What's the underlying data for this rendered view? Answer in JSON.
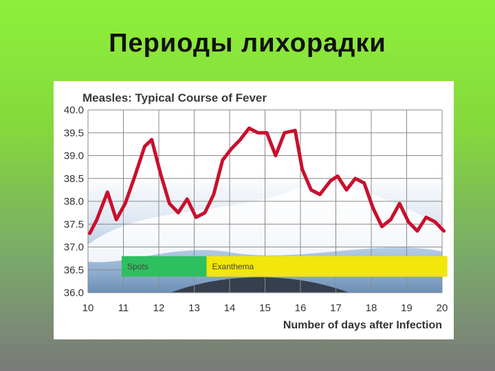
{
  "slide": {
    "title": "Периоды лихорадки"
  },
  "chart_data": {
    "type": "line",
    "title": "Measles: Typical Course of Fever",
    "xlabel": "Number of days after Infection",
    "ylabel": "",
    "xlim": [
      10,
      20
    ],
    "ylim": [
      36.0,
      40.0
    ],
    "x_ticks": [
      "10",
      "11",
      "12",
      "13",
      "14",
      "15",
      "16",
      "17",
      "18",
      "19",
      "20"
    ],
    "y_ticks": [
      "40.0",
      "39.5",
      "39.0",
      "38.5",
      "38.0",
      "37.5",
      "37.0",
      "36.5",
      "36.0"
    ],
    "grid": true,
    "series": [
      {
        "color": "#c8102e",
        "x": [
          10.05,
          10.25,
          10.55,
          10.8,
          11.05,
          11.3,
          11.6,
          11.8,
          12.05,
          12.3,
          12.55,
          12.8,
          13.05,
          13.3,
          13.55,
          13.8,
          14.05,
          14.3,
          14.55,
          14.8,
          15.05,
          15.3,
          15.55,
          15.85,
          16.05,
          16.3,
          16.55,
          16.85,
          17.05,
          17.3,
          17.55,
          17.8,
          18.05,
          18.3,
          18.55,
          18.8,
          19.05,
          19.3,
          19.55,
          19.8,
          20.05
        ],
        "values": [
          37.3,
          37.6,
          38.2,
          37.6,
          37.95,
          38.5,
          39.2,
          39.35,
          38.6,
          37.95,
          37.75,
          38.05,
          37.65,
          37.75,
          38.15,
          38.9,
          39.15,
          39.35,
          39.6,
          39.5,
          39.5,
          39.0,
          39.5,
          39.55,
          38.7,
          38.25,
          38.15,
          38.45,
          38.55,
          38.25,
          38.5,
          38.4,
          37.85,
          37.45,
          37.6,
          37.95,
          37.55,
          37.35,
          37.65,
          37.55,
          37.35
        ]
      }
    ],
    "bands": [
      {
        "label": "Spots",
        "color": "#2ebf5e",
        "x_start": 10.95,
        "x_end": 13.35,
        "y_top": 36.8,
        "y_bottom": 36.35
      },
      {
        "label": "Exanthema",
        "color": "#f2e60a",
        "x_start": 13.35,
        "x_end": 20.15,
        "y_top": 36.8,
        "y_bottom": 36.35
      }
    ]
  }
}
